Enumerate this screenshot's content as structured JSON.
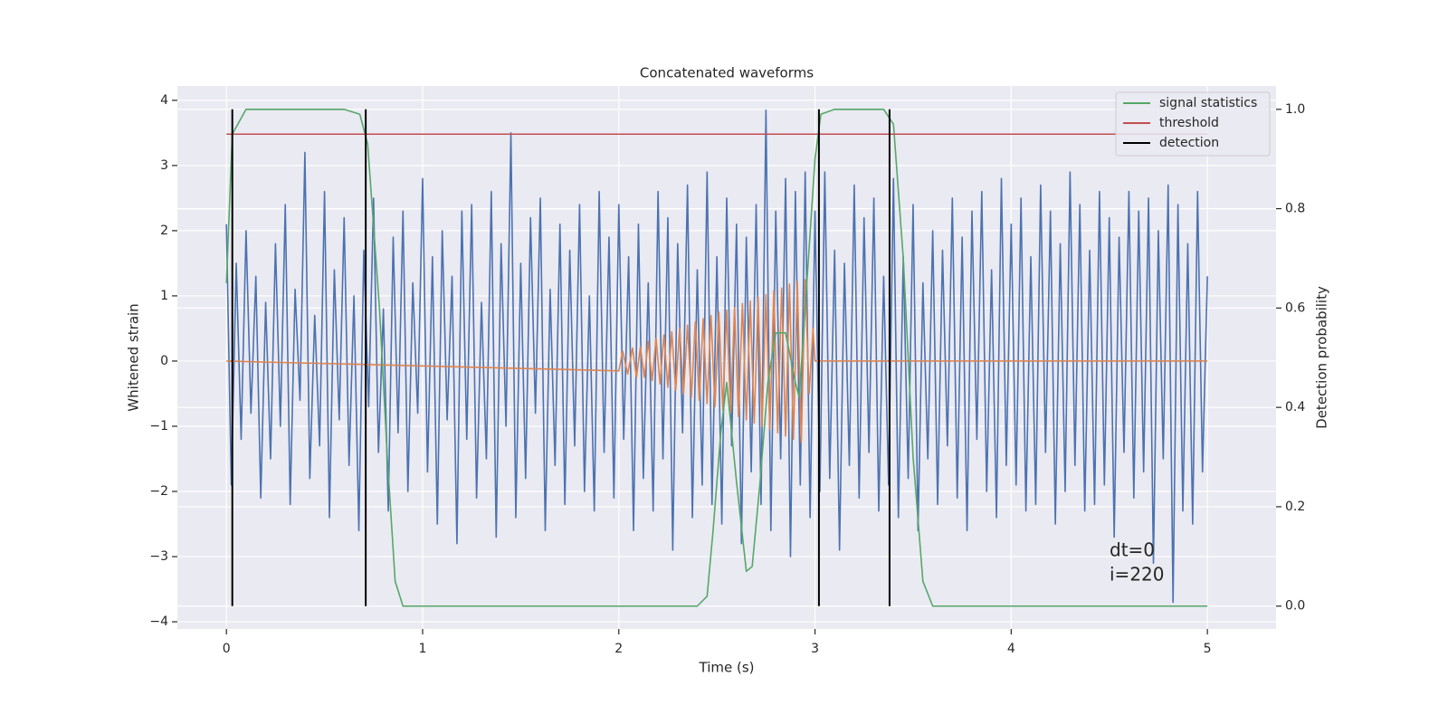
{
  "chart_data": {
    "type": "line",
    "title": "Concatenated waveforms",
    "x_label": "Time (s)",
    "y_label": "Whitened strain",
    "y2_label": "Detection probability",
    "annotation": [
      "dt=0",
      "i=220"
    ],
    "grid": true,
    "legend_position": "upper right",
    "xlim": [
      -0.25,
      5.35
    ],
    "ylim": [
      -4.11,
      4.22
    ],
    "y2lim": [
      -0.046,
      1.047
    ],
    "xticks": [
      0,
      1,
      2,
      3,
      4,
      5
    ],
    "yticks": [
      {
        "value": -4,
        "label": "−4"
      },
      {
        "value": -3,
        "label": "−3"
      },
      {
        "value": -2,
        "label": "−2"
      },
      {
        "value": -1,
        "label": "−1"
      },
      0,
      1,
      2,
      3,
      4
    ],
    "y2ticks": [
      {
        "value": 0,
        "label": "0.0"
      },
      {
        "value": 0.2,
        "label": "0.2"
      },
      {
        "value": 0.4,
        "label": "0.4"
      },
      {
        "value": 0.6,
        "label": "0.6"
      },
      {
        "value": 0.8,
        "label": "0.8"
      },
      {
        "value": 1,
        "label": "1.0"
      }
    ],
    "series": [
      {
        "color": "#4c72b0",
        "axis": "y",
        "x": [
          0,
          0.025,
          0.05,
          0.075,
          0.1,
          0.125,
          0.15,
          0.175,
          0.2,
          0.225,
          0.25,
          0.275,
          0.3,
          0.325,
          0.35,
          0.375,
          0.4,
          0.425,
          0.45,
          0.475,
          0.5,
          0.525,
          0.55,
          0.575,
          0.6,
          0.625,
          0.65,
          0.675,
          0.7,
          0.725,
          0.75,
          0.775,
          0.8,
          0.825,
          0.85,
          0.875,
          0.9,
          0.925,
          0.95,
          0.975,
          1,
          1.025,
          1.05,
          1.075,
          1.1,
          1.125,
          1.15,
          1.175,
          1.2,
          1.225,
          1.25,
          1.275,
          1.3,
          1.325,
          1.35,
          1.375,
          1.4,
          1.425,
          1.45,
          1.475,
          1.5,
          1.525,
          1.55,
          1.575,
          1.6,
          1.625,
          1.65,
          1.675,
          1.7,
          1.725,
          1.75,
          1.775,
          1.8,
          1.825,
          1.85,
          1.875,
          1.9,
          1.925,
          1.95,
          1.975,
          2,
          2.025,
          2.05,
          2.075,
          2.1,
          2.125,
          2.15,
          2.175,
          2.2,
          2.225,
          2.25,
          2.275,
          2.3,
          2.325,
          2.35,
          2.375,
          2.4,
          2.425,
          2.45,
          2.475,
          2.5,
          2.525,
          2.55,
          2.575,
          2.6,
          2.625,
          2.65,
          2.675,
          2.7,
          2.725,
          2.75,
          2.775,
          2.8,
          2.825,
          2.85,
          2.875,
          2.9,
          2.925,
          2.95,
          2.975,
          3,
          3.025,
          3.05,
          3.075,
          3.1,
          3.125,
          3.15,
          3.175,
          3.2,
          3.225,
          3.25,
          3.275,
          3.3,
          3.325,
          3.35,
          3.375,
          3.4,
          3.425,
          3.45,
          3.475,
          3.5,
          3.525,
          3.55,
          3.575,
          3.6,
          3.625,
          3.65,
          3.675,
          3.7,
          3.725,
          3.75,
          3.775,
          3.8,
          3.825,
          3.85,
          3.875,
          3.9,
          3.925,
          3.95,
          3.975,
          4,
          4.025,
          4.05,
          4.075,
          4.1,
          4.125,
          4.15,
          4.175,
          4.2,
          4.225,
          4.25,
          4.275,
          4.3,
          4.325,
          4.35,
          4.375,
          4.4,
          4.425,
          4.45,
          4.475,
          4.5,
          4.525,
          4.55,
          4.575,
          4.6,
          4.625,
          4.65,
          4.675,
          4.7,
          4.725,
          4.75,
          4.775,
          4.8,
          4.825,
          4.85,
          4.875,
          4.9,
          4.925,
          4.95,
          4.975,
          5
        ],
        "values": [
          2.1,
          -1.9,
          1.5,
          -1.2,
          2.0,
          -0.8,
          1.3,
          -2.1,
          0.9,
          -1.5,
          1.8,
          -1.0,
          2.4,
          -2.2,
          1.1,
          -0.6,
          3.2,
          -1.8,
          0.7,
          -1.3,
          2.6,
          -2.4,
          1.4,
          -0.9,
          2.2,
          -1.6,
          1.0,
          -2.6,
          1.7,
          -0.7,
          2.5,
          -1.4,
          0.8,
          -2.3,
          1.9,
          -1.1,
          2.3,
          -2.0,
          1.2,
          -0.8,
          2.8,
          -1.7,
          1.6,
          -2.5,
          2.0,
          -0.9,
          1.3,
          -2.8,
          2.3,
          -1.2,
          2.4,
          -2.1,
          0.9,
          -1.5,
          2.6,
          -2.7,
          1.8,
          -1.0,
          3.5,
          -2.4,
          1.5,
          -1.8,
          2.2,
          -0.8,
          2.5,
          -2.6,
          1.1,
          -1.6,
          2.1,
          -2.2,
          1.7,
          -1.3,
          2.4,
          -2.0,
          1.0,
          -2.3,
          2.6,
          -1.4,
          1.9,
          -2.1,
          2.4,
          -1.2,
          1.6,
          -2.6,
          2.1,
          -1.8,
          1.2,
          -2.3,
          2.6,
          -1.5,
          2.2,
          -2.9,
          1.8,
          -1.1,
          2.7,
          -2.4,
          1.4,
          -1.9,
          2.9,
          -2.2,
          1.6,
          -2.5,
          2.5,
          -1.3,
          2.1,
          -2.8,
          1.9,
          -1.7,
          2.4,
          -2.2,
          3.85,
          -2.6,
          2.3,
          -1.5,
          2.8,
          -3.0,
          2.6,
          -1.9,
          2.9,
          -2.4,
          2.3,
          -2.0,
          2.9,
          -1.8,
          1.7,
          -2.9,
          1.5,
          -1.6,
          2.7,
          -2.1,
          2.2,
          -1.4,
          2.5,
          -2.3,
          1.3,
          -1.9,
          2.8,
          -2.4,
          1.6,
          -1.8,
          2.4,
          -2.6,
          1.2,
          -1.5,
          2.0,
          -2.2,
          1.7,
          -1.3,
          2.5,
          -2.1,
          1.9,
          -2.6,
          2.3,
          -1.2,
          2.6,
          -2.0,
          1.4,
          -2.4,
          2.8,
          -1.6,
          2.1,
          -1.9,
          2.5,
          -2.3,
          1.6,
          -2.2,
          2.7,
          -1.4,
          2.3,
          -2.5,
          1.8,
          -2.0,
          2.9,
          -1.6,
          2.4,
          -2.3,
          1.7,
          -2.2,
          2.6,
          -1.9,
          2.2,
          -2.7,
          1.9,
          -1.4,
          2.6,
          -2.1,
          2.3,
          -1.7,
          2.5,
          -3.1,
          2.0,
          -1.5,
          2.7,
          -3.7,
          2.4,
          -2.3,
          1.8,
          -2.5,
          2.6,
          -1.7,
          1.3
        ]
      },
      {
        "color": "#dd8452",
        "axis": "y",
        "x": [
          0,
          2.0,
          2.02,
          2.045,
          2.07,
          2.09,
          2.11,
          2.13,
          2.15,
          2.17,
          2.19,
          2.21,
          2.23,
          2.25,
          2.27,
          2.29,
          2.31,
          2.33,
          2.35,
          2.37,
          2.39,
          2.41,
          2.43,
          2.45,
          2.47,
          2.49,
          2.51,
          2.53,
          2.55,
          2.57,
          2.59,
          2.61,
          2.63,
          2.65,
          2.67,
          2.69,
          2.71,
          2.73,
          2.75,
          2.77,
          2.79,
          2.81,
          2.83,
          2.85,
          2.87,
          2.89,
          2.91,
          2.93,
          2.95,
          2.97,
          2.99,
          3.0,
          5.0
        ],
        "values": [
          0,
          -0.15,
          0.15,
          -0.2,
          0.2,
          -0.25,
          0.22,
          -0.25,
          0.3,
          -0.3,
          0.35,
          -0.35,
          0.4,
          -0.4,
          0.45,
          -0.45,
          0.5,
          -0.5,
          0.55,
          -0.55,
          0.6,
          -0.6,
          0.65,
          -0.65,
          0.7,
          -0.7,
          0.75,
          -0.75,
          0.78,
          -0.8,
          0.82,
          -0.85,
          0.88,
          -0.9,
          0.92,
          -0.95,
          0.98,
          -1.0,
          1.02,
          -1.05,
          1.08,
          -1.1,
          1.12,
          -1.15,
          1.18,
          -1.2,
          1.22,
          -1.25,
          1.25,
          -0.5,
          0.5,
          0,
          0
        ]
      },
      {
        "name": "signal statistics",
        "color": "#55a868",
        "axis": "y2",
        "x": [
          0,
          0.03,
          0.1,
          0.6,
          0.68,
          0.72,
          0.78,
          0.82,
          0.86,
          0.9,
          1.5,
          2.4,
          2.45,
          2.48,
          2.52,
          2.55,
          2.6,
          2.65,
          2.68,
          2.72,
          2.76,
          2.8,
          2.85,
          2.9,
          2.92,
          2.95,
          3.0,
          3.03,
          3.1,
          3.35,
          3.4,
          3.45,
          3.5,
          3.55,
          3.6,
          5.0
        ],
        "values": [
          0.65,
          0.95,
          1.0,
          1.0,
          0.99,
          0.93,
          0.6,
          0.3,
          0.05,
          0.0,
          0.0,
          0.0,
          0.02,
          0.15,
          0.35,
          0.45,
          0.25,
          0.07,
          0.08,
          0.25,
          0.45,
          0.55,
          0.55,
          0.45,
          0.42,
          0.6,
          0.9,
          0.99,
          1.0,
          1.0,
          0.97,
          0.7,
          0.3,
          0.05,
          0.0,
          0.0
        ]
      },
      {
        "name": "threshold",
        "color": "#c44e52",
        "axis": "y2",
        "x": [
          0,
          5
        ],
        "values": [
          0.95,
          0.95
        ]
      },
      {
        "name": "detection",
        "color": "#000000",
        "axis": "y2",
        "kind": "vlines",
        "x": [
          0.03,
          0.71,
          3.02,
          3.38
        ],
        "ymin": 0,
        "ymax": 1
      }
    ]
  }
}
